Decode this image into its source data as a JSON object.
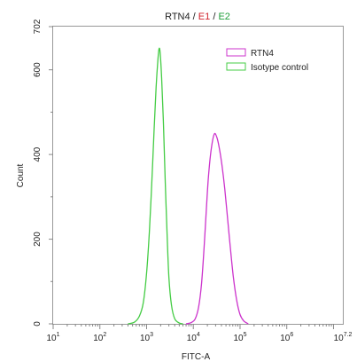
{
  "chart_data": {
    "type": "line",
    "title_parts": [
      {
        "text": "RTN4",
        "color": "#222222"
      },
      {
        "text": " / ",
        "color": "#222222"
      },
      {
        "text": "E1",
        "color": "#d0202a"
      },
      {
        "text": " / ",
        "color": "#222222"
      },
      {
        "text": "E2",
        "color": "#1f9e3a"
      }
    ],
    "xlabel": "FITC-A",
    "ylabel": "Count",
    "x_scale": "log",
    "xlim": [
      10,
      15848932
    ],
    "ylim": [
      0,
      702
    ],
    "x_ticks": [
      {
        "base": "10",
        "exp": "1",
        "value": 10
      },
      {
        "base": "10",
        "exp": "2",
        "value": 100
      },
      {
        "base": "10",
        "exp": "3",
        "value": 1000
      },
      {
        "base": "10",
        "exp": "4",
        "value": 10000
      },
      {
        "base": "10",
        "exp": "5",
        "value": 100000
      },
      {
        "base": "10",
        "exp": "6",
        "value": 1000000
      },
      {
        "base": "10",
        "exp": "7.2",
        "value": 15848932
      }
    ],
    "y_ticks": [
      {
        "label": "0",
        "value": 0
      },
      {
        "label": "200",
        "value": 200
      },
      {
        "label": "400",
        "value": 400
      },
      {
        "label": "600",
        "value": 600
      },
      {
        "label": "702",
        "value": 702
      }
    ],
    "legend_position": "top-right",
    "series": [
      {
        "name": "RTN4",
        "color": "#cc33cc",
        "points": [
          [
            7000,
            0
          ],
          [
            9000,
            3
          ],
          [
            11000,
            12
          ],
          [
            13000,
            40
          ],
          [
            15000,
            95
          ],
          [
            17000,
            180
          ],
          [
            19000,
            270
          ],
          [
            21000,
            345
          ],
          [
            24000,
            410
          ],
          [
            28000,
            448
          ],
          [
            32000,
            440
          ],
          [
            36000,
            415
          ],
          [
            41000,
            375
          ],
          [
            47000,
            320
          ],
          [
            54000,
            250
          ],
          [
            62000,
            180
          ],
          [
            72000,
            110
          ],
          [
            85000,
            55
          ],
          [
            100000,
            22
          ],
          [
            120000,
            7
          ],
          [
            150000,
            0
          ]
        ]
      },
      {
        "name": "Isotype control",
        "color": "#44cc44",
        "points": [
          [
            400,
            0
          ],
          [
            550,
            4
          ],
          [
            700,
            18
          ],
          [
            850,
            50
          ],
          [
            1000,
            120
          ],
          [
            1150,
            220
          ],
          [
            1300,
            340
          ],
          [
            1450,
            460
          ],
          [
            1600,
            560
          ],
          [
            1750,
            625
          ],
          [
            1850,
            650
          ],
          [
            1950,
            640
          ],
          [
            2100,
            580
          ],
          [
            2300,
            470
          ],
          [
            2500,
            340
          ],
          [
            2750,
            210
          ],
          [
            3000,
            110
          ],
          [
            3400,
            45
          ],
          [
            4000,
            12
          ],
          [
            5000,
            2
          ],
          [
            6000,
            0
          ]
        ]
      }
    ]
  }
}
